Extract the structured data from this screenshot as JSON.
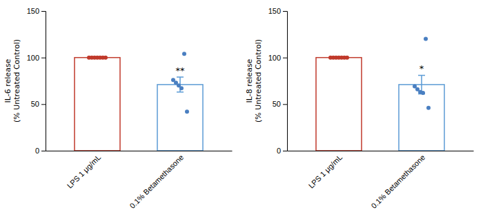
{
  "chart_data": [
    {
      "type": "bar",
      "ylabel": "IL-6 release\n(% Untreated Control)",
      "categories": [
        "LPS 1 μg/mL",
        "0.1% Betamethasone"
      ],
      "series": [
        {
          "type": "bar",
          "values": [
            100,
            71
          ],
          "colors": [
            "#c0392b",
            "#5b9bd5"
          ],
          "error": [
            null,
            8
          ]
        },
        {
          "type": "scatter",
          "x": [
            "LPS 1 μg/mL",
            "LPS 1 μg/mL",
            "LPS 1 μg/mL",
            "LPS 1 μg/mL",
            "LPS 1 μg/mL",
            "LPS 1 μg/mL",
            "LPS 1 μg/mL"
          ],
          "values": [
            100,
            100,
            100,
            100,
            100,
            100,
            100
          ],
          "color": "#c0392b"
        },
        {
          "type": "scatter",
          "x": [
            "0.1% Betamethasone",
            "0.1% Betamethasone",
            "0.1% Betamethasone",
            "0.1% Betamethasone",
            "0.1% Betamethasone",
            "0.1% Betamethasone"
          ],
          "values": [
            76,
            73,
            70,
            67,
            104,
            42
          ],
          "color": "#4a7fc1"
        }
      ],
      "annotations": [
        {
          "text": "**",
          "x": "0.1% Betamethasone"
        }
      ],
      "ylim": [
        0,
        150
      ],
      "yticks": [
        0,
        50,
        100,
        150
      ],
      "grid": false
    },
    {
      "type": "bar",
      "ylabel": "IL-8 release\n(% Untreated Control)",
      "categories": [
        "LPS 1 μg/mL",
        "0.1% Betamethasone"
      ],
      "series": [
        {
          "type": "bar",
          "values": [
            100,
            71
          ],
          "colors": [
            "#c0392b",
            "#5b9bd5"
          ],
          "error": [
            null,
            10
          ]
        },
        {
          "type": "scatter",
          "x": [
            "LPS 1 μg/mL",
            "LPS 1 μg/mL",
            "LPS 1 μg/mL",
            "LPS 1 μg/mL",
            "LPS 1 μg/mL",
            "LPS 1 μg/mL",
            "LPS 1 μg/mL"
          ],
          "values": [
            100,
            100,
            100,
            100,
            100,
            100,
            100
          ],
          "color": "#c0392b"
        },
        {
          "type": "scatter",
          "x": [
            "0.1% Betamethasone",
            "0.1% Betamethasone",
            "0.1% Betamethasone",
            "0.1% Betamethasone",
            "0.1% Betamethasone",
            "0.1% Betamethasone"
          ],
          "values": [
            69,
            66,
            63,
            62,
            120,
            46
          ],
          "color": "#4a7fc1"
        }
      ],
      "annotations": [
        {
          "text": "*",
          "x": "0.1% Betamethasone"
        }
      ],
      "ylim": [
        0,
        150
      ],
      "yticks": [
        0,
        50,
        100,
        150
      ],
      "grid": false
    }
  ]
}
